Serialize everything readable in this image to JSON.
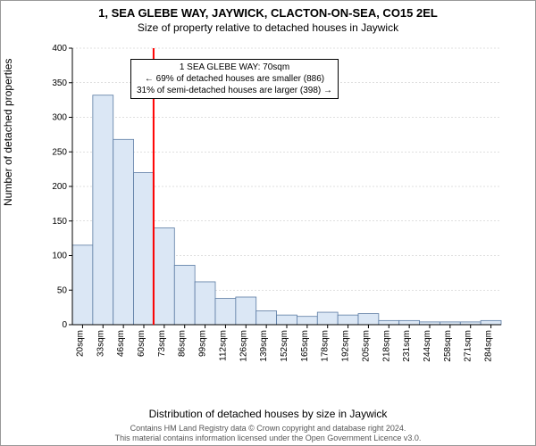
{
  "title": "1, SEA GLEBE WAY, JAYWICK, CLACTON-ON-SEA, CO15 2EL",
  "subtitle": "Size of property relative to detached houses in Jaywick",
  "ylabel": "Number of detached properties",
  "xlabel": "Distribution of detached houses by size in Jaywick",
  "footer_line1": "Contains HM Land Registry data © Crown copyright and database right 2024.",
  "footer_line2": "This material contains information licensed under the Open Government Licence v3.0.",
  "chart": {
    "type": "histogram",
    "categories": [
      "20sqm",
      "33sqm",
      "46sqm",
      "60sqm",
      "73sqm",
      "86sqm",
      "99sqm",
      "112sqm",
      "126sqm",
      "139sqm",
      "152sqm",
      "165sqm",
      "178sqm",
      "192sqm",
      "205sqm",
      "218sqm",
      "231sqm",
      "244sqm",
      "258sqm",
      "271sqm",
      "284sqm"
    ],
    "values": [
      115,
      332,
      268,
      220,
      140,
      86,
      62,
      38,
      40,
      20,
      14,
      12,
      18,
      14,
      16,
      6,
      6,
      4,
      4,
      4,
      6
    ],
    "ylim": [
      0,
      400
    ],
    "ytick_step": 50,
    "bar_fill": "#dbe7f5",
    "bar_stroke": "#5b7ba3",
    "axis_color": "#000000",
    "grid_color": "#bfbfbf",
    "background_color": "#ffffff",
    "tick_fontsize": 10,
    "label_fontsize": 12,
    "title_fontsize": 13,
    "marker": {
      "x_value": 70,
      "x_range": [
        20,
        284
      ],
      "color": "#ff0000",
      "width": 2
    }
  },
  "annotation": {
    "line1": "1 SEA GLEBE WAY: 70sqm",
    "line2": "← 69% of detached houses are smaller (886)",
    "line3": "31% of semi-detached houses are larger (398) →"
  }
}
